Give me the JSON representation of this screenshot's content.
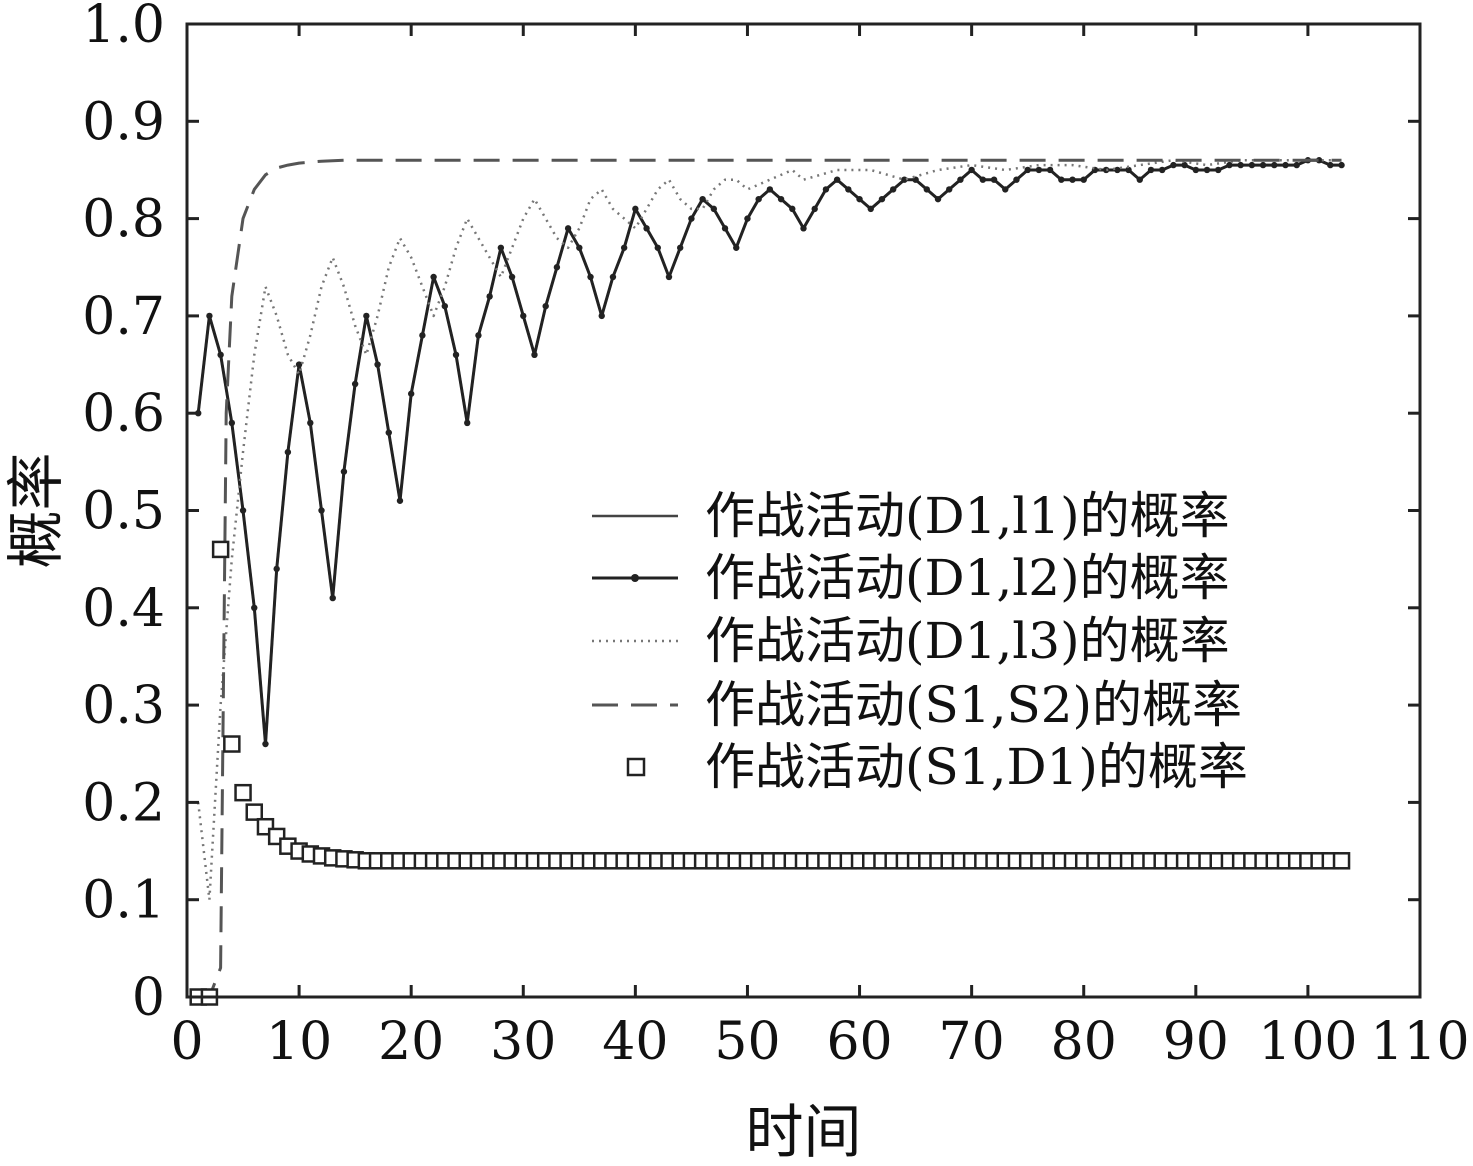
{
  "chart_data": {
    "type": "line",
    "xlabel": "时间",
    "ylabel": "概率",
    "xlim": [
      0,
      110
    ],
    "ylim": [
      0,
      1.0
    ],
    "x_ticks": [
      0,
      10,
      20,
      30,
      40,
      50,
      60,
      70,
      80,
      90,
      100,
      110
    ],
    "y_ticks": [
      0,
      0.1,
      0.2,
      0.3,
      0.4,
      0.5,
      0.6,
      0.7,
      0.8,
      0.9,
      1.0
    ],
    "x_tick_labels": [
      "0",
      "10",
      "20",
      "30",
      "40",
      "50",
      "60",
      "70",
      "80",
      "90",
      "100",
      "110"
    ],
    "y_tick_labels": [
      "0",
      "0.1",
      "0.2",
      "0.3",
      "0.4",
      "0.5",
      "0.6",
      "0.7",
      "0.8",
      "0.9",
      "1.0"
    ],
    "grid": false,
    "legend_position": "center-right",
    "series": [
      {
        "name": "作战活动(D1,l1)的概率",
        "style": "solid",
        "color": "#444444",
        "x": [
          1,
          2,
          3,
          4,
          5,
          6,
          7,
          8,
          9,
          10,
          11,
          12,
          13,
          14,
          15,
          16,
          17,
          18,
          19,
          20,
          21,
          22,
          23,
          24,
          25,
          26,
          27,
          28,
          29,
          30,
          31,
          32,
          33,
          34,
          35,
          36,
          37,
          38,
          39,
          40,
          41,
          42,
          43,
          44,
          45,
          46,
          47,
          48,
          49,
          50,
          51,
          52,
          53,
          54,
          55,
          56,
          57,
          58,
          59,
          60,
          61,
          62,
          63,
          64,
          65,
          66,
          67,
          68,
          69,
          70,
          71,
          72,
          73,
          74,
          75,
          76,
          77,
          78,
          79,
          80,
          81,
          82,
          83,
          84,
          85,
          86,
          87,
          88,
          89,
          90,
          91,
          92,
          93,
          94,
          95,
          96,
          97,
          98,
          99,
          100,
          101,
          102,
          103
        ],
        "y": [
          0.6,
          0.7,
          0.66,
          0.59,
          0.5,
          0.4,
          0.26,
          0.44,
          0.56,
          0.65,
          0.59,
          0.5,
          0.41,
          0.54,
          0.63,
          0.7,
          0.65,
          0.58,
          0.51,
          0.62,
          0.68,
          0.74,
          0.71,
          0.66,
          0.59,
          0.68,
          0.72,
          0.77,
          0.74,
          0.7,
          0.66,
          0.71,
          0.75,
          0.79,
          0.77,
          0.74,
          0.7,
          0.74,
          0.77,
          0.81,
          0.79,
          0.77,
          0.74,
          0.77,
          0.8,
          0.82,
          0.81,
          0.79,
          0.77,
          0.8,
          0.82,
          0.83,
          0.82,
          0.81,
          0.79,
          0.81,
          0.83,
          0.84,
          0.83,
          0.82,
          0.81,
          0.82,
          0.83,
          0.84,
          0.84,
          0.83,
          0.82,
          0.83,
          0.84,
          0.85,
          0.84,
          0.84,
          0.83,
          0.84,
          0.85,
          0.85,
          0.85,
          0.84,
          0.84,
          0.84,
          0.85,
          0.85,
          0.85,
          0.85,
          0.84,
          0.85,
          0.85,
          0.855,
          0.855,
          0.85,
          0.85,
          0.85,
          0.855,
          0.855,
          0.855,
          0.855,
          0.855,
          0.855,
          0.855,
          0.86,
          0.86,
          0.855,
          0.855
        ]
      },
      {
        "name": "作战活动(D1,l2)的概率",
        "style": "solid-dot",
        "color": "#222222",
        "x": [
          1,
          2,
          3,
          4,
          5,
          6,
          7,
          8,
          9,
          10,
          11,
          12,
          13,
          14,
          15,
          16,
          17,
          18,
          19,
          20,
          21,
          22,
          23,
          24,
          25,
          26,
          27,
          28,
          29,
          30,
          31,
          32,
          33,
          34,
          35,
          36,
          37,
          38,
          39,
          40,
          41,
          42,
          43,
          44,
          45,
          46,
          47,
          48,
          49,
          50,
          51,
          52,
          53,
          54,
          55,
          56,
          57,
          58,
          59,
          60,
          61,
          62,
          63,
          64,
          65,
          66,
          67,
          68,
          69,
          70,
          71,
          72,
          73,
          74,
          75,
          76,
          77,
          78,
          79,
          80,
          81,
          82,
          83,
          84,
          85,
          86,
          87,
          88,
          89,
          90,
          91,
          92,
          93,
          94,
          95,
          96,
          97,
          98,
          99,
          100,
          101,
          102,
          103
        ],
        "y": [
          0.6,
          0.7,
          0.66,
          0.59,
          0.5,
          0.4,
          0.26,
          0.44,
          0.56,
          0.65,
          0.59,
          0.5,
          0.41,
          0.54,
          0.63,
          0.7,
          0.65,
          0.58,
          0.51,
          0.62,
          0.68,
          0.74,
          0.71,
          0.66,
          0.59,
          0.68,
          0.72,
          0.77,
          0.74,
          0.7,
          0.66,
          0.71,
          0.75,
          0.79,
          0.77,
          0.74,
          0.7,
          0.74,
          0.77,
          0.81,
          0.79,
          0.77,
          0.74,
          0.77,
          0.8,
          0.82,
          0.81,
          0.79,
          0.77,
          0.8,
          0.82,
          0.83,
          0.82,
          0.81,
          0.79,
          0.81,
          0.83,
          0.84,
          0.83,
          0.82,
          0.81,
          0.82,
          0.83,
          0.84,
          0.84,
          0.83,
          0.82,
          0.83,
          0.84,
          0.85,
          0.84,
          0.84,
          0.83,
          0.84,
          0.85,
          0.85,
          0.85,
          0.84,
          0.84,
          0.84,
          0.85,
          0.85,
          0.85,
          0.85,
          0.84,
          0.85,
          0.85,
          0.855,
          0.855,
          0.85,
          0.85,
          0.85,
          0.855,
          0.855,
          0.855,
          0.855,
          0.855,
          0.855,
          0.855,
          0.86,
          0.86,
          0.855,
          0.855
        ]
      },
      {
        "name": "作战活动(D1,l3)的概率",
        "style": "dotted",
        "color": "#777777",
        "x": [
          1,
          2,
          3,
          4,
          5,
          6,
          7,
          8,
          9,
          10,
          11,
          12,
          13,
          14,
          15,
          16,
          17,
          18,
          19,
          20,
          21,
          22,
          23,
          24,
          25,
          26,
          27,
          28,
          29,
          30,
          31,
          32,
          33,
          34,
          35,
          36,
          37,
          38,
          39,
          40,
          41,
          42,
          43,
          44,
          45,
          46,
          47,
          48,
          49,
          50,
          52,
          54,
          55,
          58,
          61,
          64,
          67,
          70,
          73,
          76,
          79,
          82,
          85,
          88,
          91,
          94,
          97,
          100,
          103
        ],
        "y": [
          0.2,
          0.1,
          0.3,
          0.45,
          0.56,
          0.66,
          0.73,
          0.7,
          0.66,
          0.64,
          0.68,
          0.73,
          0.76,
          0.73,
          0.69,
          0.66,
          0.7,
          0.75,
          0.78,
          0.76,
          0.73,
          0.7,
          0.73,
          0.77,
          0.8,
          0.78,
          0.76,
          0.74,
          0.77,
          0.8,
          0.82,
          0.8,
          0.78,
          0.77,
          0.79,
          0.82,
          0.83,
          0.81,
          0.8,
          0.79,
          0.81,
          0.83,
          0.84,
          0.82,
          0.81,
          0.81,
          0.83,
          0.84,
          0.84,
          0.83,
          0.84,
          0.85,
          0.84,
          0.85,
          0.85,
          0.84,
          0.85,
          0.855,
          0.85,
          0.855,
          0.855,
          0.85,
          0.855,
          0.86,
          0.855,
          0.86,
          0.86,
          0.86,
          0.86
        ]
      },
      {
        "name": "作战活动(S1,S2)的概率",
        "style": "dashed",
        "color": "#555555",
        "x": [
          1,
          2,
          3,
          3.5,
          4,
          5,
          6,
          7,
          8,
          9,
          10,
          12,
          14,
          16,
          20,
          30,
          40,
          60,
          80,
          100,
          103
        ],
        "y": [
          0.0,
          0.0,
          0.03,
          0.6,
          0.72,
          0.8,
          0.83,
          0.845,
          0.852,
          0.855,
          0.857,
          0.859,
          0.86,
          0.86,
          0.86,
          0.86,
          0.86,
          0.86,
          0.86,
          0.86,
          0.86
        ]
      },
      {
        "name": "作战活动(S1,D1)的概率",
        "style": "square-markers",
        "color": "#222222",
        "x": [
          1,
          2,
          3,
          4,
          5,
          6,
          7,
          8,
          9,
          10,
          11,
          12,
          13,
          14,
          15,
          16,
          17,
          18,
          19,
          20,
          21,
          22,
          23,
          24,
          25,
          26,
          27,
          28,
          29,
          30,
          31,
          32,
          33,
          34,
          35,
          36,
          37,
          38,
          39,
          40,
          41,
          42,
          43,
          44,
          45,
          46,
          47,
          48,
          49,
          50,
          51,
          52,
          53,
          54,
          55,
          56,
          57,
          58,
          59,
          60,
          61,
          62,
          63,
          64,
          65,
          66,
          67,
          68,
          69,
          70,
          71,
          72,
          73,
          74,
          75,
          76,
          77,
          78,
          79,
          80,
          81,
          82,
          83,
          84,
          85,
          86,
          87,
          88,
          89,
          90,
          91,
          92,
          93,
          94,
          95,
          96,
          97,
          98,
          99,
          100,
          101,
          102,
          103
        ],
        "y": [
          0.0,
          0.0,
          0.46,
          0.26,
          0.21,
          0.19,
          0.175,
          0.165,
          0.155,
          0.15,
          0.147,
          0.145,
          0.143,
          0.142,
          0.141,
          0.14,
          0.14,
          0.14,
          0.14,
          0.14,
          0.14,
          0.14,
          0.14,
          0.14,
          0.14,
          0.14,
          0.14,
          0.14,
          0.14,
          0.14,
          0.14,
          0.14,
          0.14,
          0.14,
          0.14,
          0.14,
          0.14,
          0.14,
          0.14,
          0.14,
          0.14,
          0.14,
          0.14,
          0.14,
          0.14,
          0.14,
          0.14,
          0.14,
          0.14,
          0.14,
          0.14,
          0.14,
          0.14,
          0.14,
          0.14,
          0.14,
          0.14,
          0.14,
          0.14,
          0.14,
          0.14,
          0.14,
          0.14,
          0.14,
          0.14,
          0.14,
          0.14,
          0.14,
          0.14,
          0.14,
          0.14,
          0.14,
          0.14,
          0.14,
          0.14,
          0.14,
          0.14,
          0.14,
          0.14,
          0.14,
          0.14,
          0.14,
          0.14,
          0.14,
          0.14,
          0.14,
          0.14,
          0.14,
          0.14,
          0.14,
          0.14,
          0.14,
          0.14,
          0.14,
          0.14,
          0.14,
          0.14,
          0.14,
          0.14,
          0.14,
          0.14,
          0.14,
          0.14
        ]
      }
    ]
  }
}
